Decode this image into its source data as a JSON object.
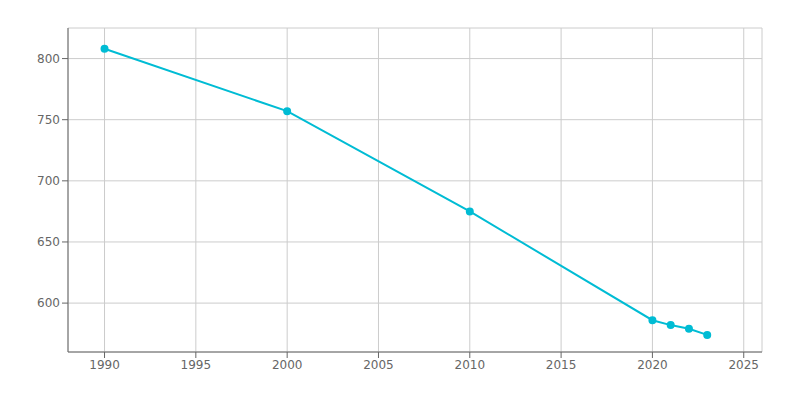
{
  "chart_data": {
    "type": "line",
    "x": [
      1990,
      2000,
      2010,
      2020,
      2021,
      2022,
      2023
    ],
    "values": [
      808,
      757,
      675,
      586,
      582,
      579,
      574
    ],
    "color": "#00bcd4",
    "marker": "circle",
    "xlim": [
      1988,
      2026
    ],
    "ylim": [
      560,
      825
    ],
    "xticks": [
      1990,
      1995,
      2000,
      2005,
      2010,
      2015,
      2020,
      2025
    ],
    "yticks": [
      600,
      650,
      700,
      750,
      800
    ],
    "grid": true
  }
}
